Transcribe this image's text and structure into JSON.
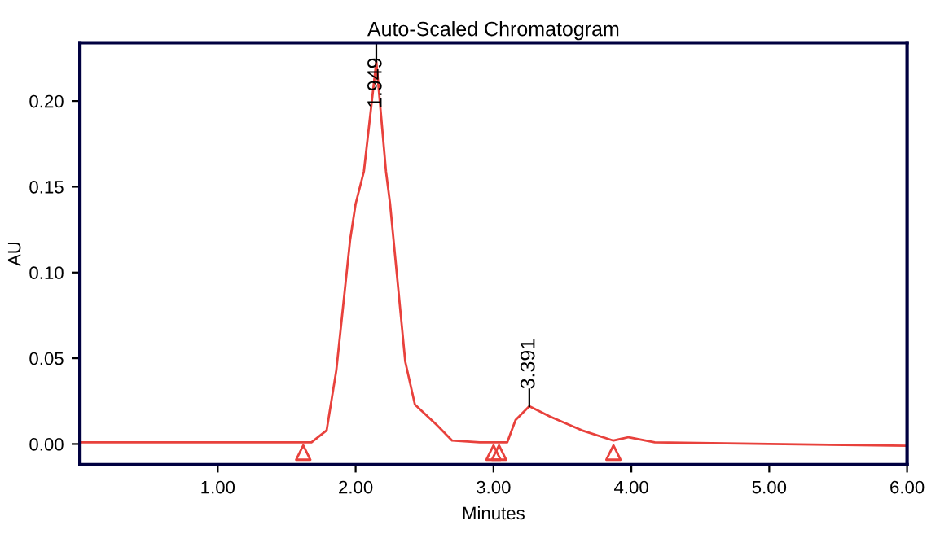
{
  "chart_data": {
    "type": "line",
    "title": "Auto-Scaled Chromatogram",
    "xlabel": "Minutes",
    "ylabel": "AU",
    "xlim": [
      0,
      6
    ],
    "ylim": [
      -0.012,
      0.234
    ],
    "xticks": [
      {
        "value": 1,
        "label": "1.00"
      },
      {
        "value": 2,
        "label": "2.00"
      },
      {
        "value": 3,
        "label": "3.00"
      },
      {
        "value": 4,
        "label": "4.00"
      },
      {
        "value": 5,
        "label": "5.00"
      },
      {
        "value": 6,
        "label": "6.00"
      }
    ],
    "yticks": [
      {
        "value": 0,
        "label": "0.00"
      },
      {
        "value": 0.05,
        "label": "0.05"
      },
      {
        "value": 0.1,
        "label": "0.10"
      },
      {
        "value": 0.15,
        "label": "0.15"
      },
      {
        "value": 0.2,
        "label": "0.20"
      }
    ],
    "grid": false,
    "legend": false,
    "series": [
      {
        "color": "#e8413c",
        "marker": "none",
        "x": [
          0,
          0.5,
          1.0,
          1.5,
          1.68,
          1.79,
          1.86,
          1.96,
          2.0,
          2.06,
          2.15,
          2.22,
          2.25,
          2.36,
          2.43,
          2.59,
          2.7,
          2.9,
          3.1,
          3.16,
          3.26,
          3.41,
          3.64,
          3.87,
          3.98,
          4.17,
          5.0,
          6.0
        ],
        "values": [
          0.001,
          0.001,
          0.001,
          0.001,
          0.001,
          0.008,
          0.043,
          0.119,
          0.14,
          0.159,
          0.223,
          0.159,
          0.14,
          0.048,
          0.023,
          0.011,
          0.002,
          0.001,
          0.001,
          0.014,
          0.022,
          0.016,
          0.008,
          0.002,
          0.004,
          0.001,
          0.0,
          -0.001
        ]
      },
      {
        "type": "scatter",
        "color": "#e8413c",
        "marker": "triangle",
        "x": [
          1.62,
          3.0,
          3.04,
          3.87
        ],
        "values": [
          -0.005,
          -0.005,
          -0.005,
          -0.005
        ]
      }
    ],
    "annotations": [
      {
        "text": "1.949",
        "x": 2.15,
        "y": 0.223
      },
      {
        "text": "3.391",
        "x": 3.26,
        "y": 0.022
      }
    ]
  }
}
